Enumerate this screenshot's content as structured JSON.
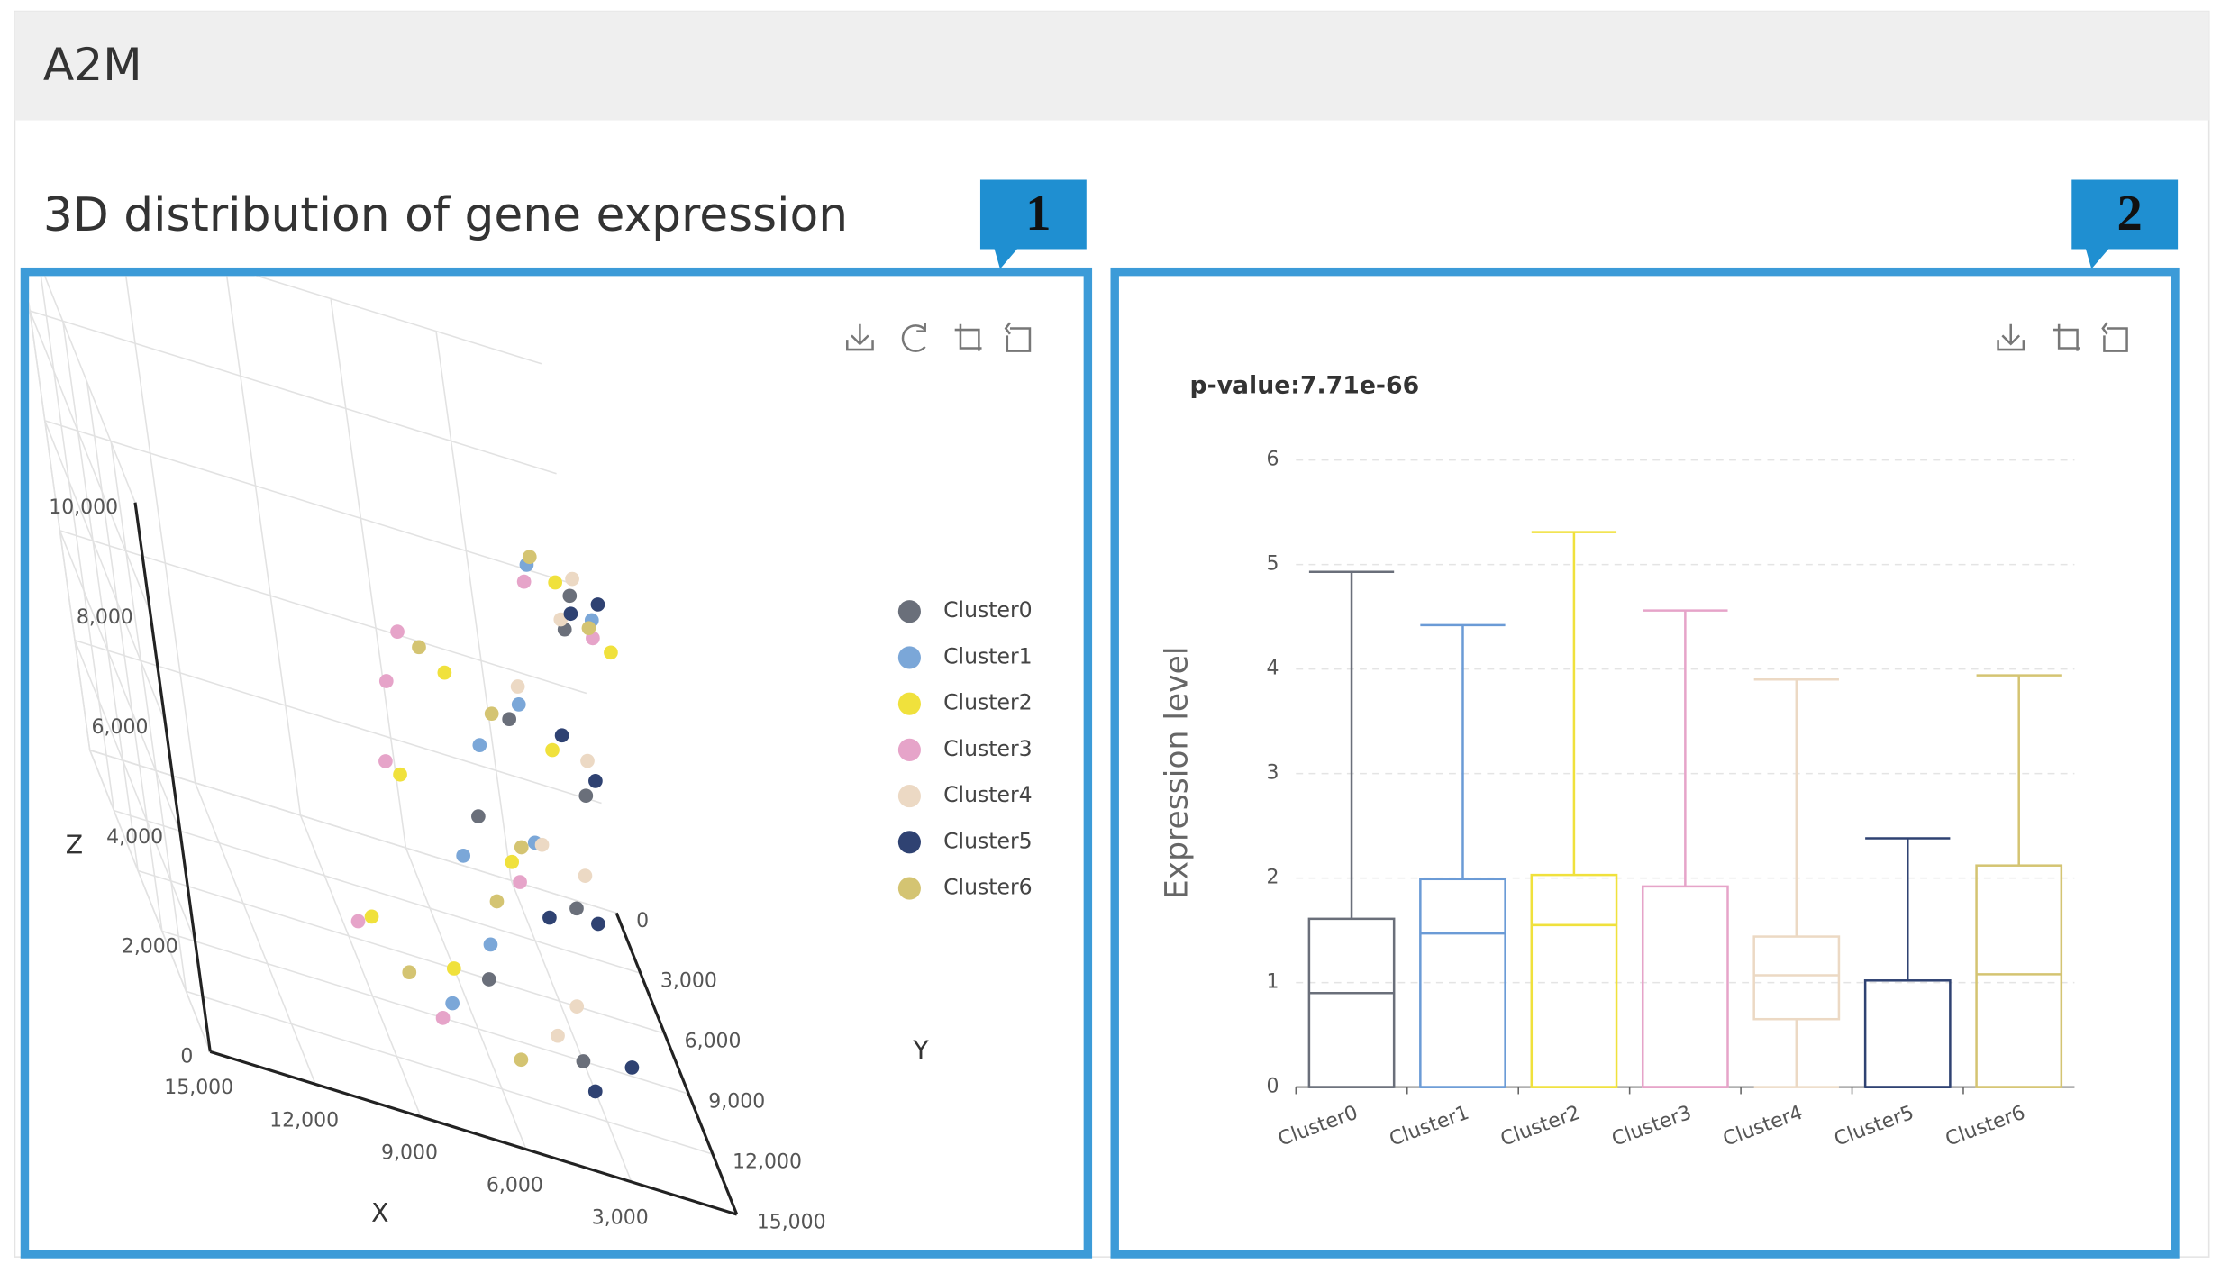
{
  "header": {
    "title": "A2M"
  },
  "section_title": "3D distribution of gene expression",
  "callouts": [
    "1",
    "2"
  ],
  "chart_data": [
    {
      "type": "scatter3d",
      "x_label": "X",
      "y_label": "Y",
      "z_label": "Z",
      "xlim": [
        0,
        15000
      ],
      "ylim": [
        0,
        15000
      ],
      "zlim": [
        0,
        10000
      ],
      "xticks": [
        {
          "value": 3000,
          "label": "3,000"
        },
        {
          "value": 6000,
          "label": "6,000"
        },
        {
          "value": 9000,
          "label": "9,000"
        },
        {
          "value": 12000,
          "label": "12,000"
        },
        {
          "value": 15000,
          "label": "15,000"
        }
      ],
      "yticks": [
        0,
        {
          "value": 3000,
          "label": "3,000"
        },
        {
          "value": 6000,
          "label": "6,000"
        },
        {
          "value": 9000,
          "label": "9,000"
        },
        {
          "value": 12000,
          "label": "12,000"
        },
        {
          "value": 15000,
          "label": "15,000"
        }
      ],
      "zticks": [
        0,
        {
          "value": 2000,
          "label": "2,000"
        },
        {
          "value": 4000,
          "label": "4,000"
        },
        {
          "value": 6000,
          "label": "6,000"
        },
        {
          "value": 8000,
          "label": "8,000"
        },
        {
          "value": 10000,
          "label": "10,000"
        }
      ],
      "grid": true,
      "legend": "right",
      "series": [
        {
          "name": "Cluster0",
          "color": "#6a6f7a",
          "x": [
            3000,
            5000,
            2500,
            4500,
            2000,
            3500,
            1200,
            1800
          ],
          "y": [
            9000,
            6000,
            8500,
            5000,
            10000,
            7000,
            7000,
            9000
          ],
          "z": [
            0,
            0,
            2700,
            2700,
            5400,
            5400,
            8100,
            8100
          ]
        },
        {
          "name": "Cluster1",
          "color": "#7ba7d8",
          "x": [
            4500,
            6500,
            3000,
            5500,
            3000,
            4800,
            800,
            2200
          ],
          "y": [
            4000,
            8000,
            5500,
            7500,
            6000,
            9000,
            8000,
            6000
          ],
          "z": [
            0,
            0,
            2700,
            2700,
            5400,
            5400,
            8100,
            8100
          ]
        },
        {
          "name": "Cluster2",
          "color": "#f0e13c",
          "x": [
            6000,
            8000,
            4000,
            6500,
            2500,
            5000,
            1500,
            600
          ],
          "y": [
            6000,
            4500,
            7000,
            4000,
            8000,
            5500,
            6500,
            9500
          ],
          "z": [
            0,
            0,
            2700,
            2700,
            5400,
            5400,
            8100,
            8100
          ]
        },
        {
          "name": "Cluster3",
          "color": "#e6a4c9",
          "x": [
            8500,
            7000,
            6800,
            4000,
            6000,
            7000,
            1000,
            2500
          ],
          "y": [
            5000,
            9000,
            3500,
            8000,
            4000,
            7000,
            9000,
            7000
          ],
          "z": [
            0,
            0,
            2700,
            2700,
            5400,
            5400,
            8100,
            8100
          ]
        },
        {
          "name": "Cluster4",
          "color": "#ecd9c4",
          "x": [
            2500,
            3500,
            1800,
            2800,
            2800,
            1500,
            1800,
            900
          ],
          "y": [
            6000,
            8000,
            6500,
            5500,
            5000,
            8000,
            8500,
            6000
          ],
          "z": [
            0,
            0,
            2700,
            2700,
            5400,
            5400,
            8100,
            8100
          ]
        },
        {
          "name": "Cluster5",
          "color": "#2f4272",
          "x": [
            1500,
            3000,
            2000,
            3500,
            1500,
            2000,
            400,
            1400
          ],
          "y": [
            8500,
            10500,
            9000,
            9500,
            9000,
            7000,
            7000,
            8000
          ],
          "z": [
            0,
            0,
            2700,
            2700,
            5400,
            5400,
            8100,
            8100
          ]
        },
        {
          "name": "Cluster6",
          "color": "#d4c472",
          "x": [
            5000,
            7500,
            5000,
            3500,
            4000,
            5500,
            2000,
            1000
          ],
          "y": [
            10000,
            7000,
            9500,
            6000,
            7000,
            4500,
            5500,
            8500
          ],
          "z": [
            0,
            0,
            2700,
            2700,
            5400,
            5400,
            8100,
            8100
          ]
        }
      ]
    },
    {
      "type": "boxplot",
      "title": "p-value:7.71e-66",
      "y_label": "Expression level",
      "categories": [
        "Cluster0",
        "Cluster1",
        "Cluster2",
        "Cluster3",
        "Cluster4",
        "Cluster5",
        "Cluster6"
      ],
      "ylim": [
        0,
        6
      ],
      "yticks": [
        0,
        1,
        2,
        3,
        4,
        5,
        6
      ],
      "grid": true,
      "series": [
        {
          "name": "Cluster0",
          "color": "#6a6f7a",
          "min": 0,
          "q1": 0,
          "median": 0.9,
          "q3": 1.61,
          "max": 4.93
        },
        {
          "name": "Cluster1",
          "color": "#6b9bd6",
          "min": 0,
          "q1": 0,
          "median": 1.47,
          "q3": 1.99,
          "max": 4.42
        },
        {
          "name": "Cluster2",
          "color": "#f0e13c",
          "min": 0,
          "q1": 0,
          "median": 1.55,
          "q3": 2.03,
          "max": 5.31
        },
        {
          "name": "Cluster3",
          "color": "#e6a4c9",
          "min": 0,
          "q1": 0,
          "median": 0,
          "q3": 1.92,
          "max": 4.56
        },
        {
          "name": "Cluster4",
          "color": "#ecd9c4",
          "min": 0,
          "q1": 0.65,
          "median": 1.07,
          "q3": 1.44,
          "max": 3.9
        },
        {
          "name": "Cluster5",
          "color": "#2f4272",
          "min": 0,
          "q1": 0,
          "median": 0,
          "q3": 1.02,
          "max": 2.38
        },
        {
          "name": "Cluster6",
          "color": "#d4c472",
          "min": 0,
          "q1": 0,
          "median": 1.08,
          "q3": 2.12,
          "max": 3.94
        }
      ]
    }
  ]
}
